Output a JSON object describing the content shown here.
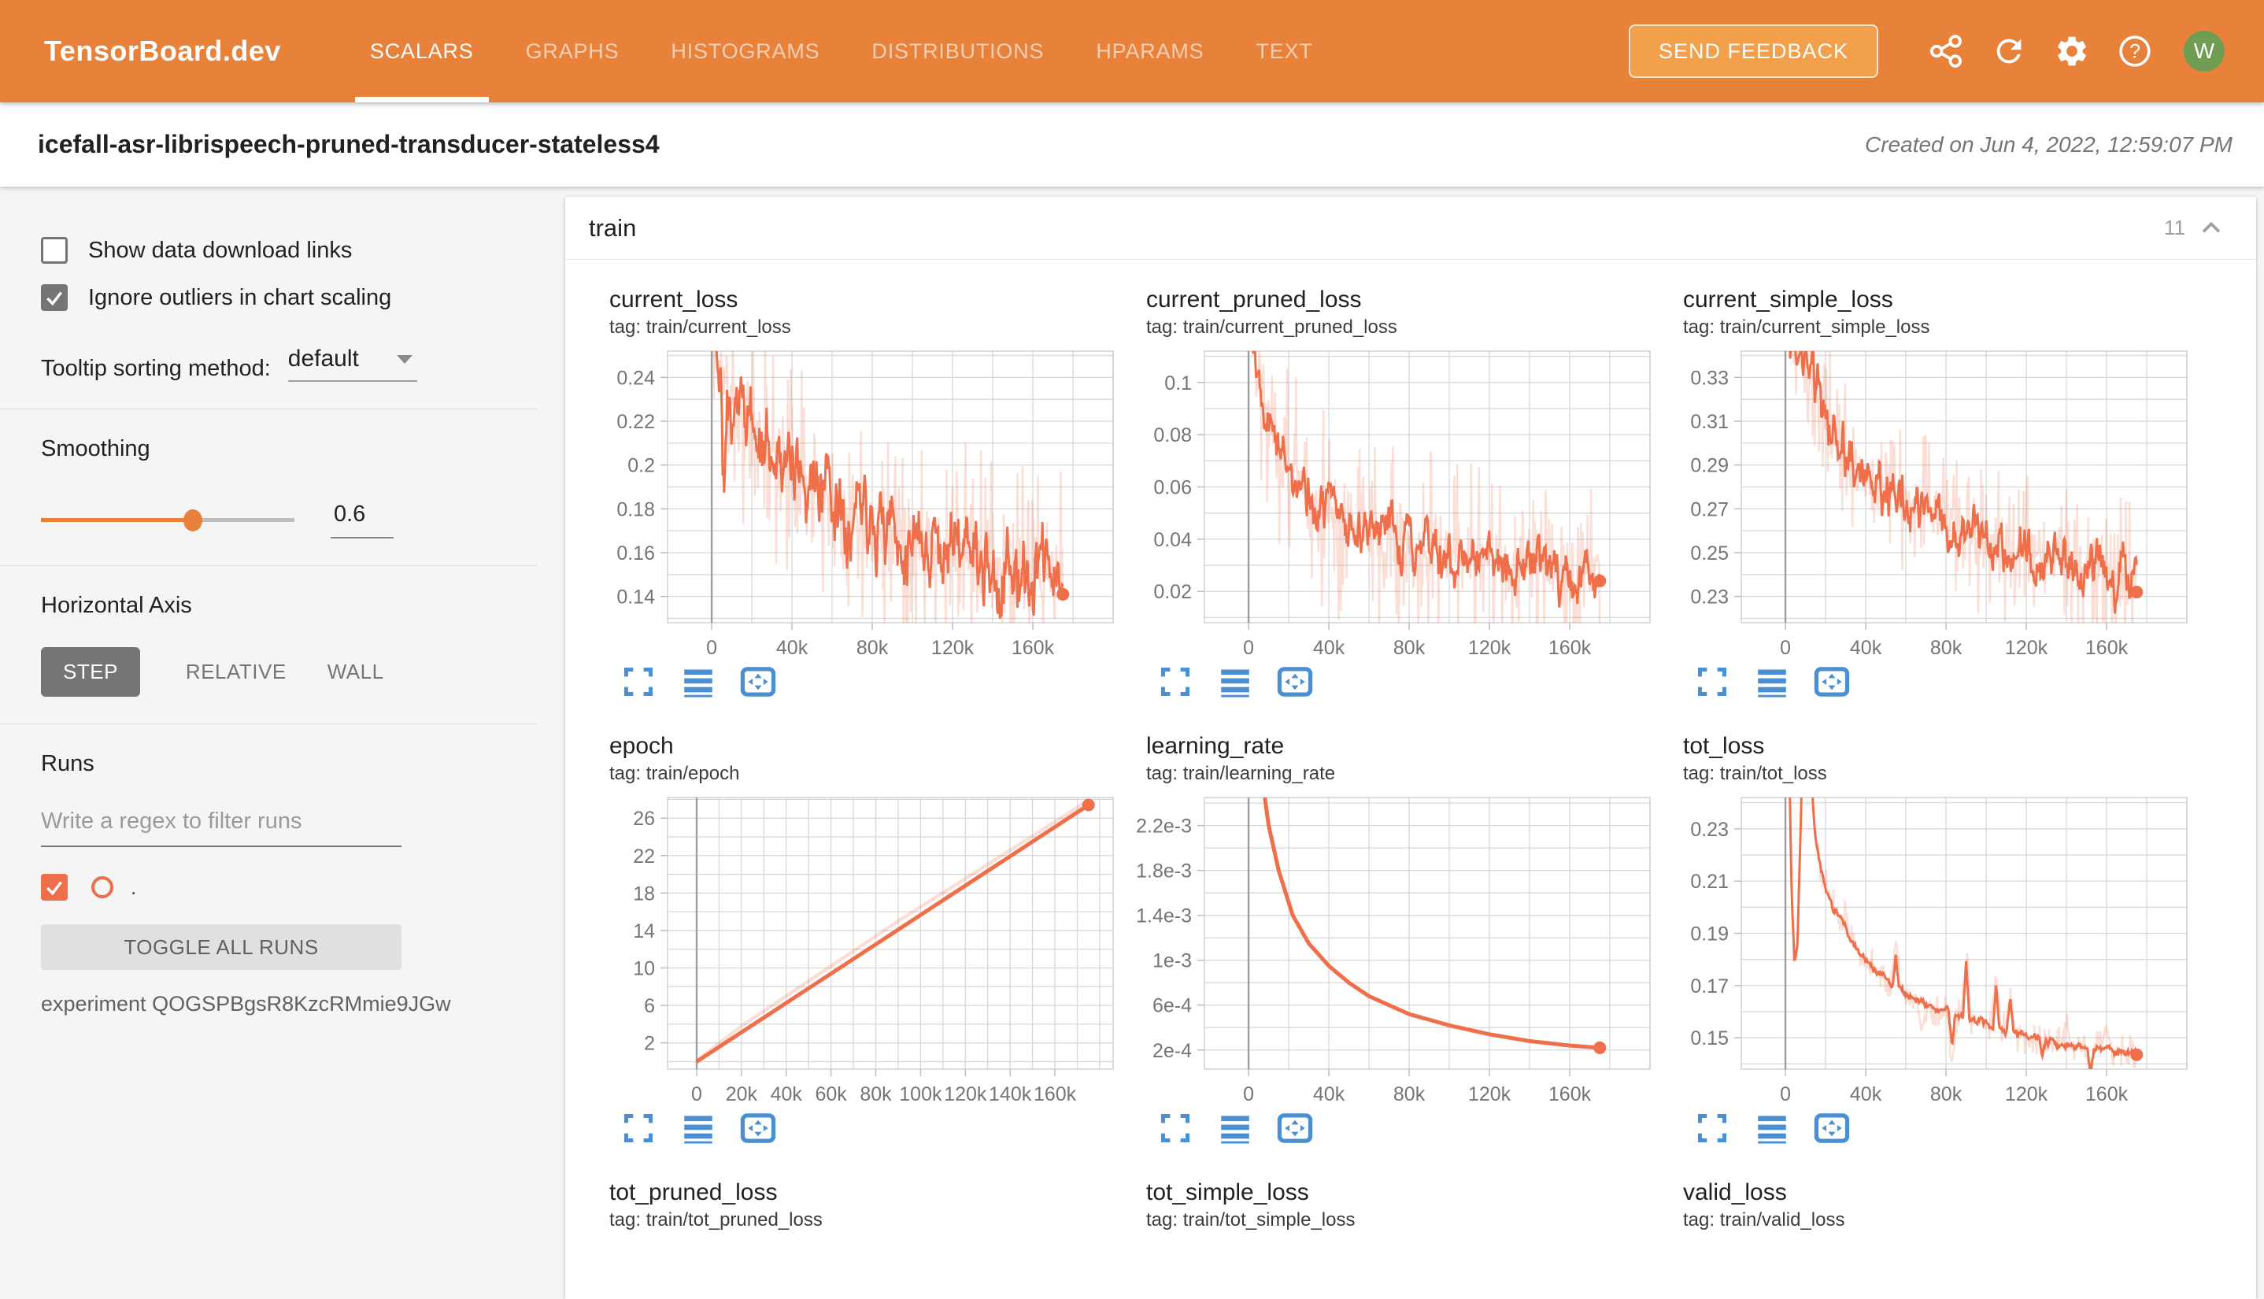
{
  "navbar": {
    "logo": "TensorBoard.dev",
    "tabs": [
      {
        "label": "SCALARS",
        "active": true
      },
      {
        "label": "GRAPHS",
        "active": false
      },
      {
        "label": "HISTOGRAMS",
        "active": false
      },
      {
        "label": "DISTRIBUTIONS",
        "active": false
      },
      {
        "label": "HPARAMS",
        "active": false
      },
      {
        "label": "TEXT",
        "active": false
      }
    ],
    "send_feedback_label": "SEND FEEDBACK",
    "icons": [
      "share-icon",
      "refresh-icon",
      "settings-icon",
      "help-icon"
    ],
    "avatar_initial": "W",
    "avatar_color": "#6f9e53"
  },
  "titlebar": {
    "experiment_title": "icefall-asr-librispeech-pruned-transducer-stateless4",
    "created": "Created on Jun 4, 2022, 12:59:07 PM"
  },
  "sidebar": {
    "checkboxes": [
      {
        "label": "Show data download links",
        "checked": false
      },
      {
        "label": "Ignore outliers in chart scaling",
        "checked": true
      }
    ],
    "tooltip_sorting": {
      "label": "Tooltip sorting method:",
      "value": "default"
    },
    "smoothing": {
      "label": "Smoothing",
      "value": "0.6",
      "fraction": 0.6
    },
    "horizontal_axis": {
      "label": "Horizontal Axis",
      "options": [
        {
          "label": "STEP",
          "active": true
        },
        {
          "label": "RELATIVE",
          "active": false
        },
        {
          "label": "WALL",
          "active": false
        }
      ]
    },
    "runs": {
      "label": "Runs",
      "filter_placeholder": "Write a regex to filter runs",
      "run_name": ".",
      "run_checked": true,
      "toggle_all_label": "TOGGLE ALL RUNS",
      "experiment_label": "experiment QOGSPBgsR8KzcRMmie9JGw"
    }
  },
  "main": {
    "section_title": "train",
    "chart_count": "11"
  },
  "colors": {
    "accent_orange": "#e8813a",
    "line_orange": "#ee6f4a",
    "line_orange_light": "rgba(238,111,74,0.22)",
    "icon_blue": "#4a8fd2",
    "grid": "#d8d8d8",
    "zero_line": "#9e9e9e",
    "axis_text": "#757575"
  },
  "chart_data": [
    {
      "type": "line",
      "title": "current_loss",
      "tag": "tag: train/current_loss",
      "plot": true,
      "series_style": "noisy",
      "seed": 11,
      "xlim": [
        -22000,
        200000
      ],
      "ylim": [
        0.128,
        0.252
      ],
      "xticks": [
        {
          "v": 0,
          "l": "0"
        },
        {
          "v": 40000,
          "l": "40k"
        },
        {
          "v": 80000,
          "l": "80k"
        },
        {
          "v": 120000,
          "l": "120k"
        },
        {
          "v": 160000,
          "l": "160k"
        }
      ],
      "xgrid_step": 20000,
      "yticks": [
        {
          "v": 0.14,
          "l": "0.14"
        },
        {
          "v": 0.16,
          "l": "0.16"
        },
        {
          "v": 0.18,
          "l": "0.18"
        },
        {
          "v": 0.2,
          "l": "0.2"
        },
        {
          "v": 0.22,
          "l": "0.22"
        },
        {
          "v": 0.24,
          "l": "0.24"
        }
      ],
      "ygrid_start": 0.13,
      "ygrid_step": 0.01,
      "trend": [
        [
          0,
          0.262
        ],
        [
          5000,
          0.24
        ],
        [
          10000,
          0.229
        ],
        [
          20000,
          0.216
        ],
        [
          30000,
          0.208
        ],
        [
          40000,
          0.198
        ],
        [
          50000,
          0.19
        ],
        [
          60000,
          0.185
        ],
        [
          70000,
          0.18
        ],
        [
          80000,
          0.175
        ],
        [
          90000,
          0.17
        ],
        [
          100000,
          0.167
        ],
        [
          110000,
          0.164
        ],
        [
          120000,
          0.162
        ],
        [
          130000,
          0.158
        ],
        [
          140000,
          0.155
        ],
        [
          150000,
          0.153
        ],
        [
          160000,
          0.15
        ],
        [
          168000,
          0.148
        ],
        [
          175000,
          0.145
        ]
      ],
      "raw_amp": 0.026,
      "smooth_amp": 0.014,
      "smooth_spikes": [
        [
          6000,
          -0.055
        ]
      ],
      "raw_spikes": [],
      "end_point": [
        175000,
        0.141
      ]
    },
    {
      "type": "line",
      "title": "current_pruned_loss",
      "tag": "tag: train/current_pruned_loss",
      "plot": true,
      "series_style": "noisy",
      "seed": 22,
      "xlim": [
        -22000,
        200000
      ],
      "ylim": [
        0.008,
        0.112
      ],
      "xticks": [
        {
          "v": 0,
          "l": "0"
        },
        {
          "v": 40000,
          "l": "40k"
        },
        {
          "v": 80000,
          "l": "80k"
        },
        {
          "v": 120000,
          "l": "120k"
        },
        {
          "v": 160000,
          "l": "160k"
        }
      ],
      "xgrid_step": 20000,
      "yticks": [
        {
          "v": 0.02,
          "l": "0.02"
        },
        {
          "v": 0.04,
          "l": "0.04"
        },
        {
          "v": 0.06,
          "l": "0.06"
        },
        {
          "v": 0.08,
          "l": "0.08"
        },
        {
          "v": 0.1,
          "l": "0.1"
        }
      ],
      "ygrid_start": 0.01,
      "ygrid_step": 0.01,
      "trend": [
        [
          2000,
          0.118
        ],
        [
          6000,
          0.102
        ],
        [
          10000,
          0.091
        ],
        [
          15000,
          0.076
        ],
        [
          20000,
          0.066
        ],
        [
          30000,
          0.058
        ],
        [
          40000,
          0.051
        ],
        [
          50000,
          0.046
        ],
        [
          60000,
          0.043
        ],
        [
          70000,
          0.04
        ],
        [
          80000,
          0.037
        ],
        [
          90000,
          0.035
        ],
        [
          100000,
          0.033
        ],
        [
          110000,
          0.032
        ],
        [
          120000,
          0.031
        ],
        [
          130000,
          0.03
        ],
        [
          140000,
          0.028
        ],
        [
          150000,
          0.027
        ],
        [
          160000,
          0.026
        ],
        [
          175000,
          0.025
        ]
      ],
      "raw_amp": 0.02,
      "smooth_amp": 0.008,
      "smooth_spikes": [],
      "raw_spikes": [],
      "end_point": [
        175000,
        0.024
      ]
    },
    {
      "type": "line",
      "title": "current_simple_loss",
      "tag": "tag: train/current_simple_loss",
      "plot": true,
      "series_style": "noisy",
      "seed": 33,
      "xlim": [
        -22000,
        200000
      ],
      "ylim": [
        0.218,
        0.342
      ],
      "xticks": [
        {
          "v": 0,
          "l": "0"
        },
        {
          "v": 40000,
          "l": "40k"
        },
        {
          "v": 80000,
          "l": "80k"
        },
        {
          "v": 120000,
          "l": "120k"
        },
        {
          "v": 160000,
          "l": "160k"
        }
      ],
      "xgrid_step": 20000,
      "yticks": [
        {
          "v": 0.23,
          "l": "0.23"
        },
        {
          "v": 0.25,
          "l": "0.25"
        },
        {
          "v": 0.27,
          "l": "0.27"
        },
        {
          "v": 0.29,
          "l": "0.29"
        },
        {
          "v": 0.31,
          "l": "0.31"
        },
        {
          "v": 0.33,
          "l": "0.33"
        }
      ],
      "ygrid_start": 0.22,
      "ygrid_step": 0.01,
      "trend": [
        [
          2000,
          0.346
        ],
        [
          8000,
          0.336
        ],
        [
          15000,
          0.322
        ],
        [
          20000,
          0.31
        ],
        [
          25000,
          0.301
        ],
        [
          30000,
          0.295
        ],
        [
          40000,
          0.285
        ],
        [
          50000,
          0.278
        ],
        [
          60000,
          0.272
        ],
        [
          70000,
          0.268
        ],
        [
          80000,
          0.262
        ],
        [
          90000,
          0.258
        ],
        [
          100000,
          0.255
        ],
        [
          110000,
          0.252
        ],
        [
          120000,
          0.25
        ],
        [
          130000,
          0.248
        ],
        [
          140000,
          0.246
        ],
        [
          150000,
          0.244
        ],
        [
          160000,
          0.242
        ],
        [
          175000,
          0.238
        ]
      ],
      "raw_amp": 0.018,
      "smooth_amp": 0.009,
      "smooth_spikes": [],
      "raw_spikes": [],
      "end_point": [
        175000,
        0.232
      ]
    },
    {
      "type": "line",
      "title": "epoch",
      "tag": "tag: train/epoch",
      "plot": true,
      "series_style": "straight",
      "seed": 44,
      "xlim": [
        -13000,
        186000
      ],
      "ylim": [
        -0.8,
        28.2
      ],
      "xticks": [
        {
          "v": 0,
          "l": "0"
        },
        {
          "v": 20000,
          "l": "20k"
        },
        {
          "v": 40000,
          "l": "40k"
        },
        {
          "v": 60000,
          "l": "60k"
        },
        {
          "v": 80000,
          "l": "80k"
        },
        {
          "v": 100000,
          "l": "100k"
        },
        {
          "v": 120000,
          "l": "120k"
        },
        {
          "v": 140000,
          "l": "140k"
        },
        {
          "v": 160000,
          "l": "160k"
        }
      ],
      "xgrid_step": 10000,
      "yticks": [
        {
          "v": 2,
          "l": "2"
        },
        {
          "v": 6,
          "l": "6"
        },
        {
          "v": 10,
          "l": "10"
        },
        {
          "v": 14,
          "l": "14"
        },
        {
          "v": 18,
          "l": "18"
        },
        {
          "v": 22,
          "l": "22"
        },
        {
          "v": 26,
          "l": "26"
        }
      ],
      "ygrid_start": 0,
      "ygrid_step": 2,
      "main_points": [
        [
          0,
          0
        ],
        [
          175000,
          27.4
        ]
      ],
      "light_points": [
        [
          0,
          0.1
        ],
        [
          20000,
          3.8
        ],
        [
          90000,
          15.0
        ],
        [
          160000,
          25.6
        ],
        [
          175000,
          27.9
        ]
      ],
      "end_point": [
        175000,
        27.4
      ]
    },
    {
      "type": "line",
      "title": "learning_rate",
      "tag": "tag: train/learning_rate",
      "plot": true,
      "series_style": "curve",
      "seed": 55,
      "xlim": [
        -22000,
        200000
      ],
      "ylim": [
        3e-05,
        0.00245
      ],
      "xticks": [
        {
          "v": 0,
          "l": "0"
        },
        {
          "v": 40000,
          "l": "40k"
        },
        {
          "v": 80000,
          "l": "80k"
        },
        {
          "v": 120000,
          "l": "120k"
        },
        {
          "v": 160000,
          "l": "160k"
        }
      ],
      "xgrid_step": 20000,
      "yticks": [
        {
          "v": 0.0002,
          "l": "2e-4"
        },
        {
          "v": 0.0006,
          "l": "6e-4"
        },
        {
          "v": 0.001,
          "l": "1e-3"
        },
        {
          "v": 0.0014,
          "l": "1.4e-3"
        },
        {
          "v": 0.0018,
          "l": "1.8e-3"
        },
        {
          "v": 0.0022,
          "l": "2.2e-3"
        }
      ],
      "ygrid_start": 0.0002,
      "ygrid_step": 0.0002,
      "main_points": [
        [
          6500,
          0.00262
        ],
        [
          8000,
          0.00246
        ],
        [
          10000,
          0.0022
        ],
        [
          15000,
          0.0018
        ],
        [
          22000,
          0.0014
        ],
        [
          30000,
          0.00115
        ],
        [
          40000,
          0.00095
        ],
        [
          50000,
          0.0008
        ],
        [
          60000,
          0.00068
        ],
        [
          80000,
          0.00052
        ],
        [
          100000,
          0.00042
        ],
        [
          120000,
          0.00034
        ],
        [
          140000,
          0.00028
        ],
        [
          160000,
          0.00024
        ],
        [
          175000,
          0.00022
        ]
      ],
      "end_point": [
        175000,
        0.00022
      ]
    },
    {
      "type": "line",
      "title": "tot_loss",
      "tag": "tag: train/tot_loss",
      "plot": true,
      "series_style": "noisy",
      "seed": 66,
      "xlim": [
        -22000,
        200000
      ],
      "ylim": [
        0.138,
        0.242
      ],
      "xticks": [
        {
          "v": 0,
          "l": "0"
        },
        {
          "v": 40000,
          "l": "40k"
        },
        {
          "v": 80000,
          "l": "80k"
        },
        {
          "v": 120000,
          "l": "120k"
        },
        {
          "v": 160000,
          "l": "160k"
        }
      ],
      "xgrid_step": 20000,
      "yticks": [
        {
          "v": 0.15,
          "l": "0.15"
        },
        {
          "v": 0.17,
          "l": "0.17"
        },
        {
          "v": 0.19,
          "l": "0.19"
        },
        {
          "v": 0.21,
          "l": "0.21"
        },
        {
          "v": 0.23,
          "l": "0.23"
        }
      ],
      "ygrid_start": 0.14,
      "ygrid_step": 0.01,
      "trend": [
        [
          1500,
          0.27
        ],
        [
          3000,
          0.21
        ],
        [
          4500,
          0.178
        ],
        [
          6000,
          0.186
        ],
        [
          7500,
          0.23
        ],
        [
          9000,
          0.272
        ],
        [
          12000,
          0.262
        ],
        [
          14000,
          0.235
        ],
        [
          16000,
          0.222
        ],
        [
          18000,
          0.214
        ],
        [
          20000,
          0.209
        ],
        [
          24000,
          0.2
        ],
        [
          28000,
          0.194
        ],
        [
          32000,
          0.188
        ],
        [
          36000,
          0.184
        ],
        [
          40000,
          0.18
        ],
        [
          46000,
          0.175
        ],
        [
          52000,
          0.171
        ],
        [
          58000,
          0.168
        ],
        [
          64000,
          0.165
        ],
        [
          70000,
          0.163
        ],
        [
          76000,
          0.161
        ],
        [
          82000,
          0.159
        ],
        [
          88000,
          0.158
        ],
        [
          94000,
          0.156
        ],
        [
          100000,
          0.155
        ],
        [
          106000,
          0.154
        ],
        [
          112000,
          0.152
        ],
        [
          118000,
          0.151
        ],
        [
          124000,
          0.15
        ],
        [
          130000,
          0.149
        ],
        [
          136000,
          0.148
        ],
        [
          142000,
          0.147
        ],
        [
          150000,
          0.146
        ],
        [
          158000,
          0.146
        ],
        [
          166000,
          0.145
        ],
        [
          175000,
          0.144
        ]
      ],
      "raw_amp": 0.0035,
      "smooth_amp": 0.0013,
      "smooth_spikes": [
        [
          55000,
          0.012
        ],
        [
          83000,
          -0.013
        ],
        [
          90000,
          0.021
        ],
        [
          105000,
          0.016
        ],
        [
          112000,
          0.013
        ],
        [
          128000,
          -0.005
        ],
        [
          152000,
          -0.009
        ]
      ],
      "raw_spikes": [
        [
          30000,
          0.008
        ],
        [
          55000,
          0.018
        ],
        [
          68000,
          -0.012
        ],
        [
          83000,
          -0.02
        ],
        [
          90000,
          0.026
        ],
        [
          105000,
          0.022
        ],
        [
          112000,
          0.018
        ],
        [
          140000,
          0.009
        ],
        [
          152000,
          -0.012
        ],
        [
          160000,
          0.008
        ]
      ],
      "end_point": [
        175000,
        0.1435
      ]
    },
    {
      "type": "line",
      "title": "tot_pruned_loss",
      "tag": "tag: train/tot_pruned_loss",
      "plot": false
    },
    {
      "type": "line",
      "title": "tot_simple_loss",
      "tag": "tag: train/tot_simple_loss",
      "plot": false
    },
    {
      "type": "line",
      "title": "valid_loss",
      "tag": "tag: train/valid_loss",
      "plot": false
    }
  ]
}
